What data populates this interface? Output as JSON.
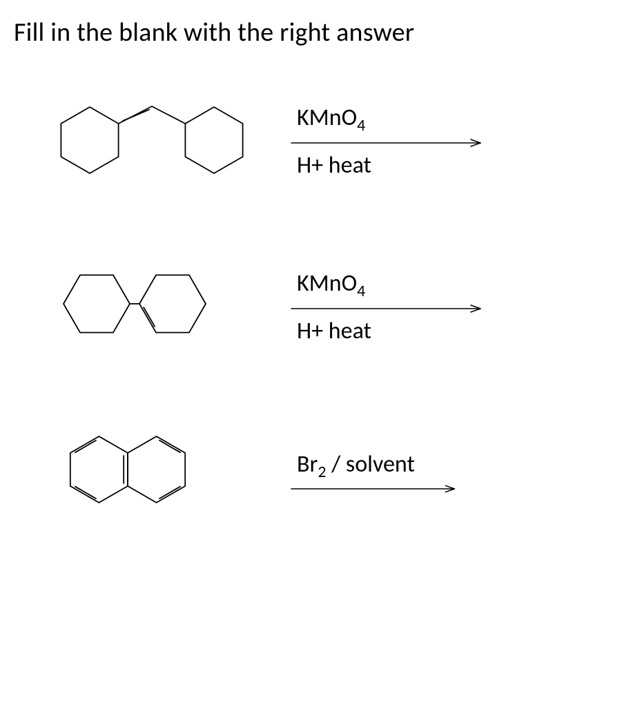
{
  "title": "Fill in the blank with the right answer",
  "colors": {
    "text": "#000000",
    "background": "#ffffff",
    "molecule_stroke": "#000000",
    "arrow_stroke": "#000000"
  },
  "style": {
    "molecule_stroke_width": 1.8,
    "molecule_bond_gap": 4.2,
    "arrow_line_width": 1.6,
    "arrow_head_len": 14,
    "arrow_head_half": 5,
    "hex_radius": 48,
    "title_fontsize": 38,
    "label_fontsize": 34
  },
  "reactions": [
    {
      "id": "rxn1",
      "molecule": {
        "type": "two-cyclohexyl-vinylene",
        "desc": "cyclohexyl-CH=CH-cyclohexyl (trans)",
        "rings": 2,
        "linker_double_bond": true
      },
      "reagent_html": "KMnO<sub>4</sub>",
      "conditions_html": "H+ heat"
    },
    {
      "id": "rxn2",
      "molecule": {
        "type": "methylenecyclohexane-cyclohexyl",
        "desc": "cyclohexylidene(cyclohexyl)methane / 1-cyclohexyl-methylenecyclohexane",
        "rings": 2,
        "exocyclic_double_bond": true
      },
      "reagent_html": "KMnO<sub>4</sub>",
      "conditions_html": "H+ heat"
    },
    {
      "id": "rxn3",
      "molecule": {
        "type": "naphthalene",
        "desc": "naphthalene (fused bicyclic aromatic)",
        "rings": 2,
        "aromatic": true
      },
      "reagent_html": "Br<sub>2</sub> / solvent",
      "conditions_html": ""
    }
  ]
}
